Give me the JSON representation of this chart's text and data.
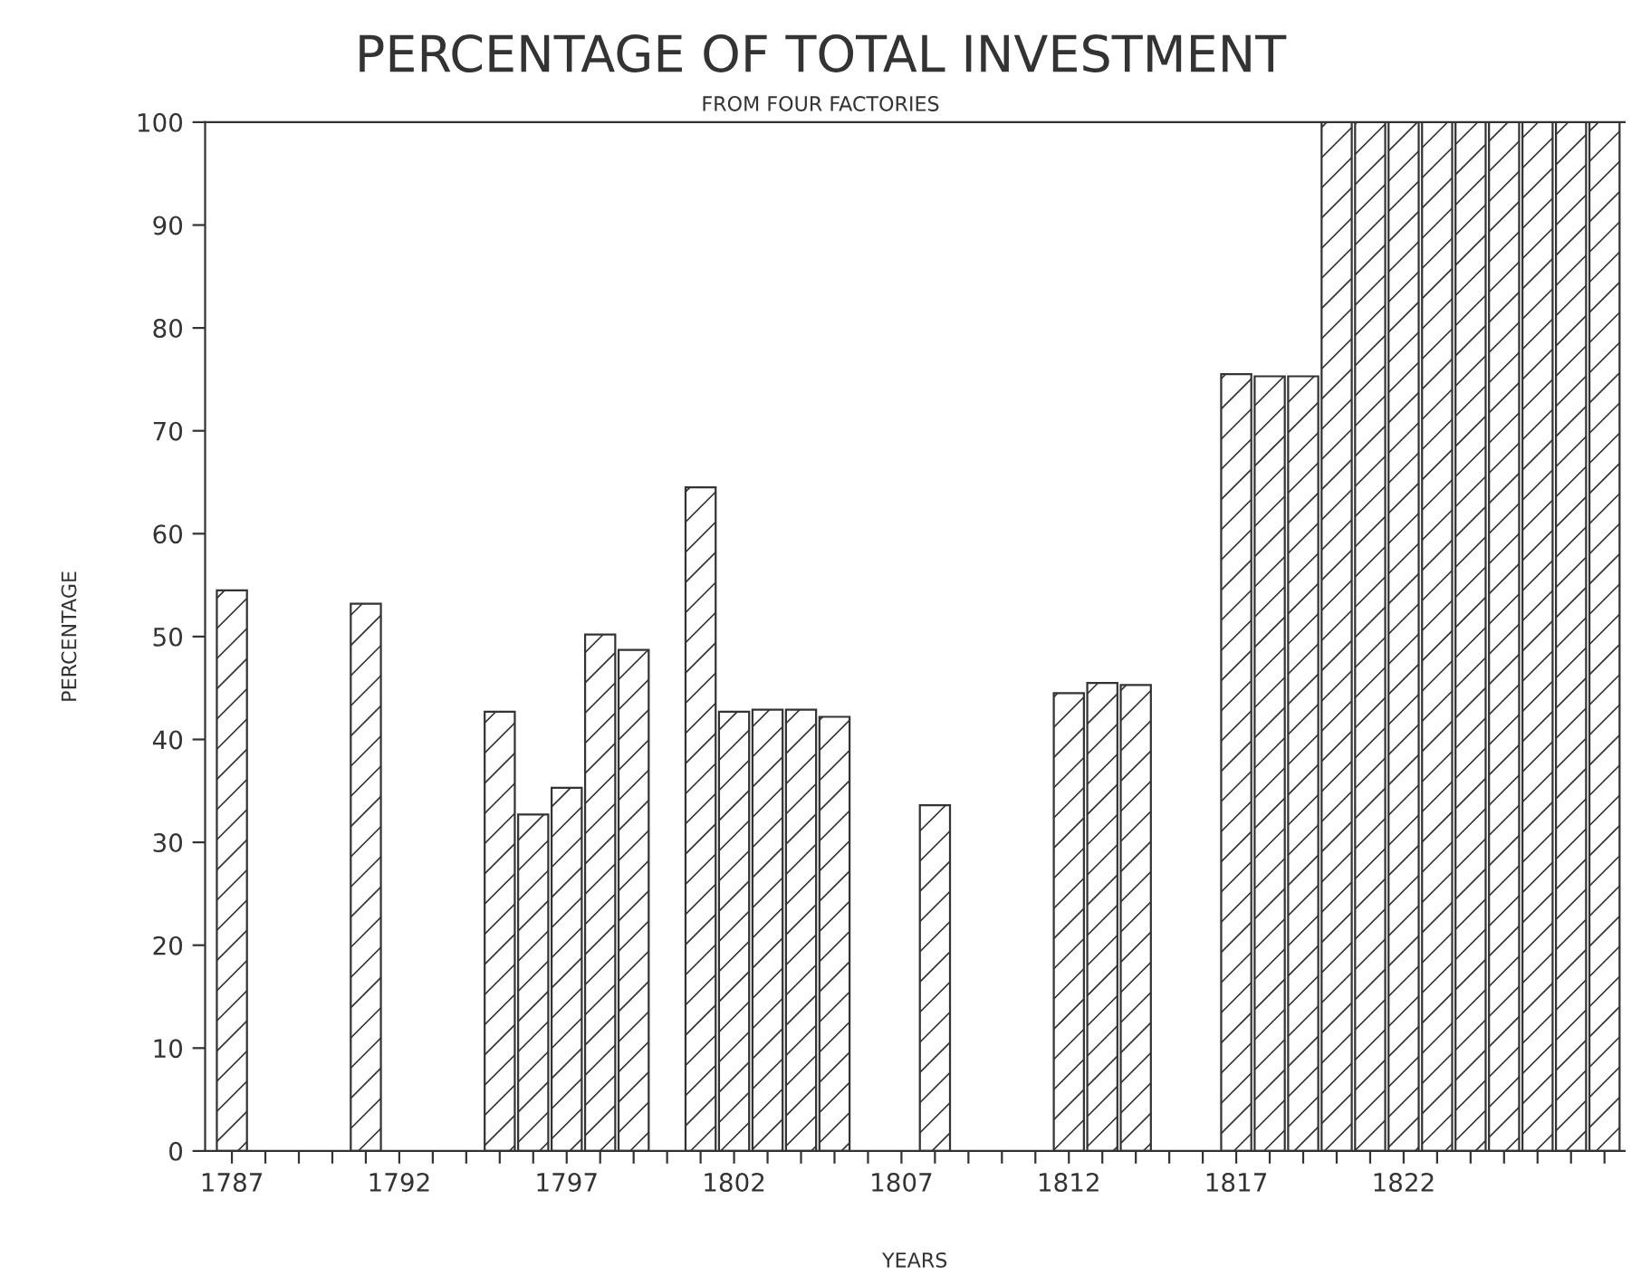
{
  "chart_data": {
    "type": "bar",
    "title": "PERCENTAGE OF TOTAL INVESTMENT",
    "subtitle": "FROM FOUR FACTORIES",
    "xlabel": "YEARS",
    "ylabel": "PERCENTAGE",
    "x": [
      1787,
      1791,
      1795,
      1796,
      1797,
      1798,
      1799,
      1801,
      1802,
      1803,
      1804,
      1805,
      1808,
      1812,
      1813,
      1814,
      1817,
      1818,
      1819,
      1820,
      1821,
      1822,
      1823,
      1824,
      1825,
      1826,
      1827,
      1828
    ],
    "values": [
      54.5,
      53.2,
      42.7,
      32.7,
      35.3,
      50.2,
      48.7,
      64.5,
      42.7,
      42.9,
      42.9,
      42.2,
      33.6,
      44.5,
      45.5,
      45.3,
      75.5,
      75.3,
      75.3,
      100,
      100,
      100,
      100,
      100,
      100,
      100,
      100,
      100
    ],
    "color": "#333333",
    "xlim": [
      1786.2,
      1828.6
    ],
    "xticks": [
      1787,
      {
        "value": 1788,
        "label": null
      },
      {
        "value": 1789,
        "label": null
      },
      {
        "value": 1790,
        "label": null
      },
      {
        "value": 1791,
        "label": null
      },
      1792,
      {
        "value": 1793,
        "label": null
      },
      {
        "value": 1794,
        "label": null
      },
      {
        "value": 1795,
        "label": null
      },
      {
        "value": 1796,
        "label": null
      },
      1797,
      {
        "value": 1798,
        "label": null
      },
      {
        "value": 1799,
        "label": null
      },
      {
        "value": 1800,
        "label": null
      },
      {
        "value": 1801,
        "label": null
      },
      1802,
      {
        "value": 1803,
        "label": null
      },
      {
        "value": 1804,
        "label": null
      },
      {
        "value": 1805,
        "label": null
      },
      {
        "value": 1806,
        "label": null
      },
      1807,
      {
        "value": 1808,
        "label": null
      },
      {
        "value": 1809,
        "label": null
      },
      {
        "value": 1810,
        "label": null
      },
      {
        "value": 1811,
        "label": null
      },
      1812,
      {
        "value": 1813,
        "label": null
      },
      {
        "value": 1814,
        "label": null
      },
      {
        "value": 1815,
        "label": null
      },
      {
        "value": 1816,
        "label": null
      },
      1817,
      {
        "value": 1818,
        "label": null
      },
      {
        "value": 1819,
        "label": null
      },
      {
        "value": 1820,
        "label": null
      },
      {
        "value": 1821,
        "label": null
      },
      1822,
      {
        "value": 1823,
        "label": null
      },
      {
        "value": 1824,
        "label": null
      },
      {
        "value": 1825,
        "label": null
      },
      {
        "value": 1826,
        "label": null
      },
      {
        "value": 1827,
        "label": null
      },
      {
        "value": 1828,
        "label": null
      }
    ],
    "ylim": [
      0,
      100
    ],
    "yticks": [
      0,
      10,
      20,
      30,
      40,
      50,
      60,
      70,
      80,
      90,
      100
    ],
    "grid": false,
    "legend": false
  }
}
